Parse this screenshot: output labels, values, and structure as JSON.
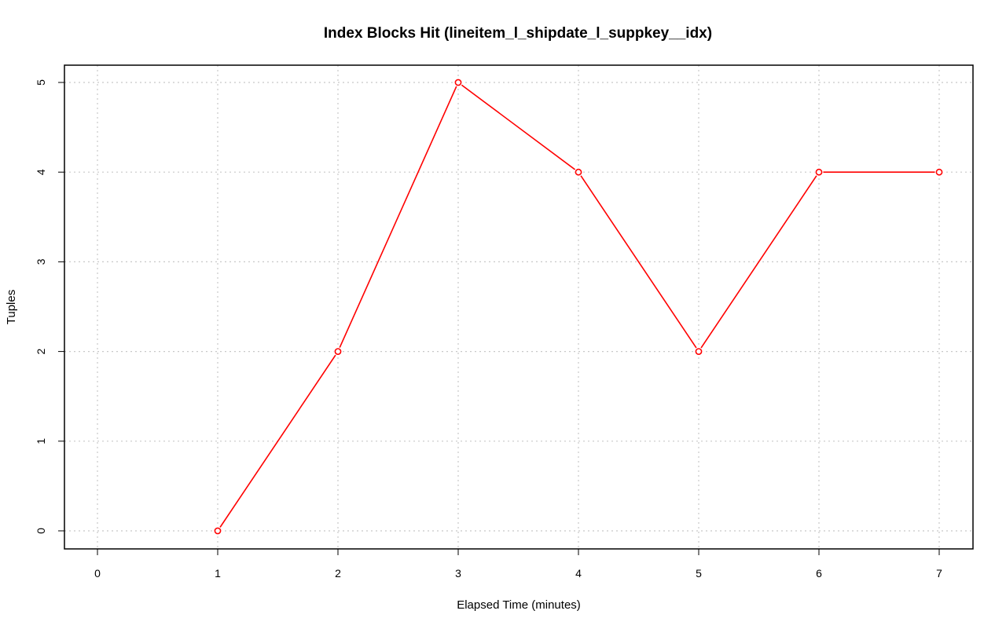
{
  "chart_data": {
    "type": "line",
    "title": "Index Blocks Hit (lineitem_l_shipdate_l_suppkey__idx)",
    "xlabel": "Elapsed Time (minutes)",
    "ylabel": "Tuples",
    "xlim": [
      0,
      7
    ],
    "ylim": [
      0,
      5
    ],
    "x_ticks": [
      "0",
      "1",
      "2",
      "3",
      "4",
      "5",
      "6",
      "7"
    ],
    "y_ticks": [
      "0",
      "1",
      "2",
      "3",
      "4",
      "5"
    ],
    "grid": true,
    "series": [
      {
        "color": "#ff0000",
        "marker": "open-circle",
        "x": [
          1,
          2,
          3,
          4,
          5,
          6,
          7
        ],
        "y": [
          0,
          2,
          5,
          4,
          2,
          4,
          4
        ]
      }
    ]
  }
}
